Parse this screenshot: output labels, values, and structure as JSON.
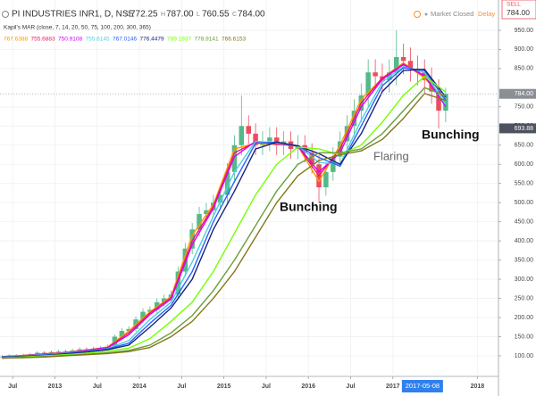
{
  "header": {
    "symbol": "PI INDUSTRIES INR1, D, NSE",
    "ohlc_labels": [
      "O",
      "H",
      "L",
      "C"
    ],
    "ohlc_values": [
      "772.25",
      "787.00",
      "760.55",
      "784.00"
    ],
    "status": "Market Closed",
    "delay": "Delay",
    "order_side": "SELL",
    "order_price": "784.00"
  },
  "chart_data": {
    "type": "candlestick",
    "x": [
      2012.375,
      2012.458,
      2012.542,
      2012.625,
      2012.708,
      2012.792,
      2012.875,
      2012.958,
      2013.042,
      2013.125,
      2013.208,
      2013.292,
      2013.375,
      2013.458,
      2013.542,
      2013.625,
      2013.708,
      2013.792,
      2013.875,
      2013.958,
      2014.042,
      2014.125,
      2014.208,
      2014.292,
      2014.375,
      2014.458,
      2014.542,
      2014.625,
      2014.708,
      2014.792,
      2014.875,
      2014.958,
      2015.042,
      2015.125,
      2015.208,
      2015.292,
      2015.375,
      2015.458,
      2015.542,
      2015.625,
      2015.708,
      2015.792,
      2015.875,
      2015.958,
      2016.042,
      2016.125,
      2016.208,
      2016.292,
      2016.375,
      2016.458,
      2016.542,
      2016.625,
      2016.708,
      2016.792,
      2016.875,
      2016.958,
      2017.042,
      2017.125,
      2017.208,
      2017.292,
      2017.375,
      2017.458,
      2017.542,
      2017.625
    ],
    "open": [
      96,
      98,
      100,
      97,
      102,
      104,
      108,
      106,
      110,
      112,
      109,
      114,
      117,
      116,
      119,
      121,
      124,
      150,
      165,
      170,
      195,
      215,
      220,
      240,
      250,
      260,
      320,
      380,
      430,
      470,
      480,
      500,
      520,
      580,
      650,
      700,
      680,
      650,
      660,
      670,
      650,
      660,
      640,
      650,
      630,
      600,
      540,
      580,
      620,
      660,
      700,
      740,
      780,
      840,
      830,
      820,
      840,
      880,
      870,
      850,
      840,
      820,
      790,
      740
    ],
    "high": [
      102,
      104,
      104,
      106,
      108,
      112,
      112,
      114,
      116,
      116,
      119,
      122,
      122,
      124,
      126,
      129,
      156,
      172,
      177,
      203,
      224,
      229,
      250,
      260,
      270,
      333,
      395,
      447,
      489,
      499,
      520,
      541,
      603,
      676,
      780,
      728,
      707,
      686,
      697,
      697,
      686,
      686,
      676,
      676,
      655,
      624,
      603,
      645,
      686,
      728,
      770,
      811,
      874,
      874,
      863,
      874,
      950,
      915,
      905,
      884,
      874,
      853,
      822,
      800
    ],
    "low": [
      92,
      94,
      93,
      93,
      98,
      100,
      102,
      102,
      106,
      105,
      105,
      109,
      111,
      111,
      114,
      116,
      119,
      144,
      158,
      163,
      187,
      206,
      211,
      230,
      240,
      250,
      307,
      365,
      413,
      451,
      461,
      480,
      499,
      557,
      624,
      653,
      624,
      624,
      634,
      624,
      624,
      614,
      614,
      605,
      576,
      500,
      518,
      557,
      595,
      634,
      672,
      710,
      749,
      797,
      787,
      787,
      806,
      835,
      816,
      806,
      787,
      758,
      693,
      710
    ],
    "close": [
      98,
      100,
      97,
      102,
      104,
      108,
      106,
      110,
      112,
      109,
      114,
      117,
      116,
      119,
      121,
      124,
      150,
      165,
      170,
      195,
      215,
      220,
      240,
      250,
      260,
      320,
      380,
      430,
      470,
      480,
      500,
      520,
      580,
      650,
      700,
      680,
      650,
      660,
      670,
      650,
      660,
      640,
      650,
      630,
      600,
      540,
      580,
      620,
      660,
      700,
      740,
      780,
      840,
      830,
      820,
      840,
      880,
      870,
      850,
      840,
      820,
      790,
      740,
      784
    ],
    "up_color": "#53b987",
    "down_color": "#eb4d5c",
    "indicator": {
      "label": "Kapil's MAR (close, 7, 14, 20, 50, 75, 100, 200, 300, 365)",
      "x": [
        2012.375,
        2012.625,
        2012.875,
        2013.125,
        2013.375,
        2013.625,
        2013.875,
        2014.125,
        2014.375,
        2014.625,
        2014.875,
        2015.125,
        2015.375,
        2015.625,
        2015.875,
        2016.125,
        2016.375,
        2016.625,
        2016.875,
        2017.125,
        2017.375,
        2017.625
      ],
      "series": [
        {
          "legend_value": 767.6388,
          "color": "#ff9800",
          "values": [
            98,
            101,
            105,
            109,
            115,
            123,
            165,
            215,
            255,
            415,
            495,
            640,
            655,
            652,
            648,
            555,
            650,
            770,
            825,
            865,
            825,
            768
          ]
        },
        {
          "legend_value": 755.6883,
          "color": "#e91e63",
          "values": [
            98,
            101,
            105,
            108,
            115,
            122,
            160,
            212,
            252,
            400,
            490,
            630,
            658,
            653,
            648,
            570,
            640,
            760,
            825,
            862,
            830,
            756
          ]
        },
        {
          "legend_value": 750.9108,
          "color": "#d500f9",
          "values": [
            98,
            100,
            104,
            108,
            114,
            121,
            155,
            208,
            248,
            390,
            485,
            620,
            660,
            654,
            649,
            580,
            630,
            750,
            822,
            860,
            832,
            751
          ]
        },
        {
          "legend_value": 755.6145,
          "color": "#4dd0e1",
          "values": [
            97,
            100,
            103,
            107,
            112,
            119,
            140,
            195,
            240,
            345,
            465,
            580,
            660,
            656,
            648,
            605,
            600,
            715,
            815,
            855,
            840,
            756
          ]
        },
        {
          "legend_value": 767.0146,
          "color": "#2962ff",
          "values": [
            97,
            99,
            102,
            106,
            111,
            118,
            133,
            185,
            232,
            320,
            450,
            555,
            655,
            658,
            647,
            618,
            595,
            700,
            805,
            852,
            845,
            767
          ]
        },
        {
          "legend_value": 776.4479,
          "color": "#1a237e",
          "values": [
            96,
            99,
            101,
            105,
            110,
            116,
            128,
            175,
            225,
            300,
            430,
            530,
            640,
            658,
            648,
            628,
            600,
            680,
            790,
            845,
            848,
            776
          ]
        },
        {
          "legend_value": 789.1937,
          "color": "#76ff03",
          "values": [
            95,
            97,
            100,
            103,
            107,
            112,
            120,
            145,
            190,
            240,
            320,
            420,
            520,
            600,
            645,
            640,
            625,
            650,
            710,
            780,
            830,
            789
          ]
        },
        {
          "legend_value": 778.9141,
          "color": "#689f38",
          "values": [
            94,
            96,
            98,
            101,
            104,
            108,
            114,
            128,
            160,
            205,
            270,
            350,
            440,
            530,
            600,
            630,
            630,
            640,
            680,
            740,
            800,
            779
          ]
        },
        {
          "legend_value": 766.6153,
          "color": "#827717",
          "values": [
            94,
            95,
            97,
            100,
            103,
            106,
            111,
            122,
            150,
            190,
            250,
            320,
            410,
            500,
            570,
            610,
            625,
            635,
            665,
            720,
            785,
            767
          ]
        }
      ]
    },
    "xlim": [
      2012.35,
      2018.25
    ],
    "ylim": [
      51,
      1029
    ],
    "xticks": [
      {
        "value": 2012.5,
        "label": "Jul"
      },
      2013,
      {
        "value": 2013.5,
        "label": "Jul"
      },
      2014,
      {
        "value": 2014.5,
        "label": "Jul"
      },
      2015,
      {
        "value": 2015.5,
        "label": "Jul"
      },
      2016,
      {
        "value": 2016.5,
        "label": "Jul"
      },
      2017,
      2018
    ],
    "yticks": [
      {
        "value": 100,
        "label": "100.00"
      },
      {
        "value": 150,
        "label": "150.00"
      },
      {
        "value": 200,
        "label": "200.00"
      },
      {
        "value": 250,
        "label": "250.00"
      },
      {
        "value": 300,
        "label": "300.00"
      },
      {
        "value": 350,
        "label": "350.00"
      },
      {
        "value": 400,
        "label": "400.00"
      },
      {
        "value": 450,
        "label": "450.00"
      },
      {
        "value": 500,
        "label": "500.00"
      },
      {
        "value": 550,
        "label": "550.00"
      },
      {
        "value": 600,
        "label": "600.00"
      },
      {
        "value": 650,
        "label": "650.00"
      },
      {
        "value": 700,
        "label": "700.00"
      },
      {
        "value": 750,
        "label": "750.00"
      },
      {
        "value": 850,
        "label": "850.00"
      },
      {
        "value": 900,
        "label": "900.00"
      },
      {
        "value": 950,
        "label": "950.00"
      }
    ],
    "grid": true,
    "last_price": {
      "value": 784,
      "label": "784.00"
    },
    "crosshair_price": {
      "value": 693.88,
      "label": "693.88"
    },
    "crosshair_date": {
      "value": 2017.35,
      "label": "2017-05-08"
    },
    "annotations": [
      "Bunching",
      "Flaring",
      "Bunching"
    ]
  }
}
